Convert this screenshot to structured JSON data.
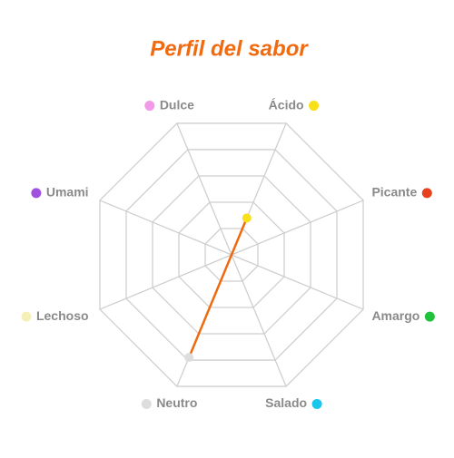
{
  "chart_data": {
    "type": "radar",
    "title": "Perfil del sabor",
    "categories": [
      "Dulce",
      "Ácido",
      "Picante",
      "Amargo",
      "Salado",
      "Neutro",
      "Lechoso",
      "Umami"
    ],
    "category_colors": [
      "#f29ae8",
      "#f7e017",
      "#e8401c",
      "#1fc23a",
      "#19c6ec",
      "#dddddd",
      "#f4f0b8",
      "#a050e0"
    ],
    "values": [
      0,
      1.4,
      0,
      0,
      0,
      3.9,
      0,
      0
    ],
    "color": "#ee6a0f",
    "rlim": [
      0,
      5
    ],
    "rticks": [
      1,
      2,
      3,
      4,
      5
    ],
    "grid": true
  }
}
